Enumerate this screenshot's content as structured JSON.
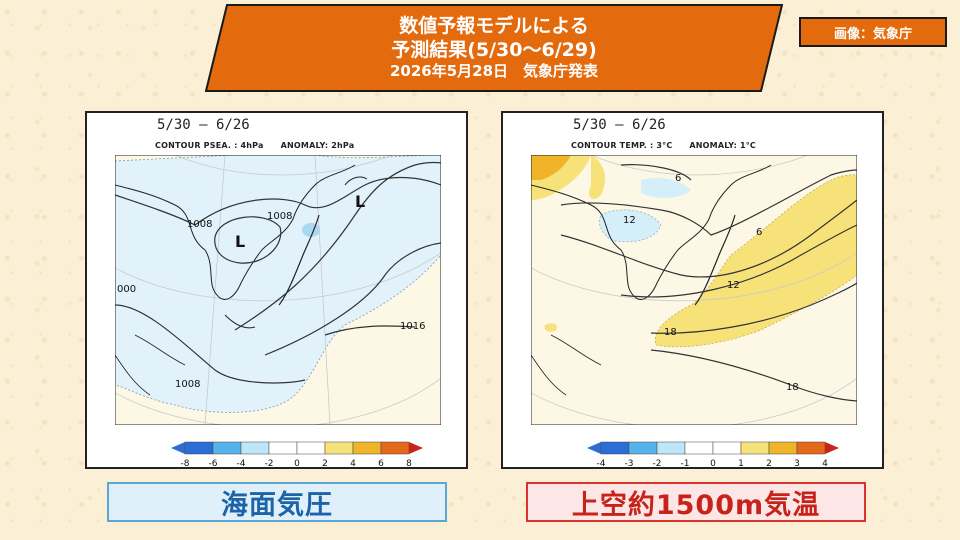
{
  "banner": {
    "line1": "数値予報モデルによる",
    "line2": "予測結果(5/30～6/29)",
    "line3": "2026年5月28日　気象庁発表",
    "color": "#e46a0e"
  },
  "credit": "画像：気象庁",
  "left_panel": {
    "period": "5/30 – 6/26",
    "contour": "CONTOUR PSEA. :  4hPa",
    "anomaly": "ANOMALY:  2hPa",
    "isobar_labels": [
      "1008",
      "1008",
      "1016",
      "1008",
      "000"
    ],
    "lows": [
      "L",
      "L"
    ],
    "colorbar_ticks": [
      "-8",
      "-6",
      "-4",
      "-2",
      "0",
      "2",
      "4",
      "6",
      "8"
    ],
    "caption": "海面気圧"
  },
  "right_panel": {
    "period": "5/30 – 6/26",
    "contour": "CONTOUR TEMP. :  3°C",
    "anomaly": "ANOMALY:  1°C",
    "isotherm_labels": [
      "6",
      "12",
      "6",
      "12",
      "18",
      "18"
    ],
    "colorbar_ticks": [
      "-4",
      "-3",
      "-2",
      "-1",
      "0",
      "1",
      "2",
      "3",
      "4"
    ],
    "caption": "上空約1500m気温"
  },
  "colors": {
    "neg_strong": "#2b6fd6",
    "neg_mid": "#56b4ea",
    "neg_light": "#bfe6f7",
    "neutral": "#ffffff",
    "pos_light": "#f7e27a",
    "pos_mid": "#efb42a",
    "pos_strong": "#e36a1a",
    "pos_max": "#c8231a"
  }
}
